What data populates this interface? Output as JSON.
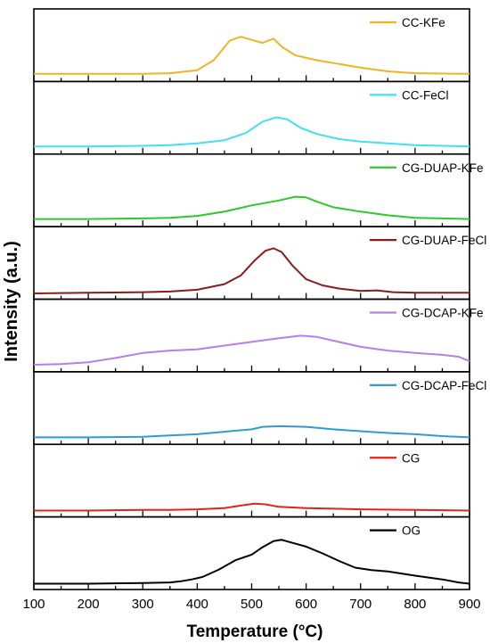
{
  "chart_data": {
    "type": "line",
    "layout": "stacked-offset",
    "xlabel": "Temperature (°C)",
    "ylabel": "Intensity (a.u.)",
    "xlim": [
      100,
      900
    ],
    "x_ticks": [
      100,
      200,
      300,
      400,
      500,
      600,
      700,
      800,
      900
    ],
    "y_ticks": [],
    "grid": false,
    "legend_position": "top-right of each panel",
    "series": [
      {
        "name": "CC-KFe",
        "color": "#f0b323",
        "points": [
          [
            100,
            0.08
          ],
          [
            200,
            0.08
          ],
          [
            300,
            0.08
          ],
          [
            350,
            0.09
          ],
          [
            400,
            0.14
          ],
          [
            430,
            0.3
          ],
          [
            460,
            0.62
          ],
          [
            480,
            0.68
          ],
          [
            500,
            0.63
          ],
          [
            520,
            0.58
          ],
          [
            540,
            0.65
          ],
          [
            555,
            0.52
          ],
          [
            580,
            0.38
          ],
          [
            620,
            0.3
          ],
          [
            660,
            0.24
          ],
          [
            700,
            0.18
          ],
          [
            750,
            0.12
          ],
          [
            800,
            0.09
          ],
          [
            900,
            0.08
          ]
        ]
      },
      {
        "name": "CC-FeCl",
        "color": "#40e0f0",
        "points": [
          [
            100,
            0.08
          ],
          [
            200,
            0.08
          ],
          [
            300,
            0.09
          ],
          [
            350,
            0.1
          ],
          [
            400,
            0.13
          ],
          [
            450,
            0.18
          ],
          [
            490,
            0.3
          ],
          [
            520,
            0.48
          ],
          [
            545,
            0.55
          ],
          [
            565,
            0.52
          ],
          [
            590,
            0.38
          ],
          [
            620,
            0.28
          ],
          [
            660,
            0.2
          ],
          [
            700,
            0.16
          ],
          [
            750,
            0.13
          ],
          [
            800,
            0.1
          ],
          [
            850,
            0.09
          ],
          [
            900,
            0.08
          ]
        ]
      },
      {
        "name": "CG-DUAP-KFe",
        "color": "#2dc82d",
        "points": [
          [
            100,
            0.08
          ],
          [
            200,
            0.08
          ],
          [
            300,
            0.09
          ],
          [
            350,
            0.1
          ],
          [
            400,
            0.13
          ],
          [
            450,
            0.2
          ],
          [
            500,
            0.3
          ],
          [
            550,
            0.38
          ],
          [
            580,
            0.44
          ],
          [
            600,
            0.43
          ],
          [
            620,
            0.36
          ],
          [
            650,
            0.27
          ],
          [
            700,
            0.2
          ],
          [
            750,
            0.14
          ],
          [
            800,
            0.1
          ],
          [
            850,
            0.09
          ],
          [
            900,
            0.08
          ]
        ]
      },
      {
        "name": "CG-DUAP-FeCl",
        "color": "#8b1a1a",
        "points": [
          [
            100,
            0.05
          ],
          [
            200,
            0.06
          ],
          [
            300,
            0.07
          ],
          [
            350,
            0.08
          ],
          [
            400,
            0.11
          ],
          [
            450,
            0.2
          ],
          [
            480,
            0.34
          ],
          [
            505,
            0.58
          ],
          [
            525,
            0.74
          ],
          [
            540,
            0.78
          ],
          [
            555,
            0.72
          ],
          [
            575,
            0.5
          ],
          [
            600,
            0.28
          ],
          [
            630,
            0.18
          ],
          [
            660,
            0.13
          ],
          [
            700,
            0.09
          ],
          [
            730,
            0.1
          ],
          [
            760,
            0.07
          ],
          [
            800,
            0.06
          ],
          [
            900,
            0.06
          ]
        ]
      },
      {
        "name": "CG-DCAP-KFe",
        "color": "#b57ee8",
        "points": [
          [
            100,
            0.07
          ],
          [
            150,
            0.08
          ],
          [
            200,
            0.11
          ],
          [
            250,
            0.18
          ],
          [
            300,
            0.26
          ],
          [
            350,
            0.3
          ],
          [
            400,
            0.32
          ],
          [
            450,
            0.38
          ],
          [
            500,
            0.44
          ],
          [
            550,
            0.5
          ],
          [
            590,
            0.54
          ],
          [
            620,
            0.52
          ],
          [
            660,
            0.44
          ],
          [
            700,
            0.36
          ],
          [
            750,
            0.3
          ],
          [
            800,
            0.26
          ],
          [
            850,
            0.23
          ],
          [
            880,
            0.2
          ],
          [
            900,
            0.13
          ]
        ]
      },
      {
        "name": "CG-DCAP-FeCl",
        "color": "#2f9bd6",
        "points": [
          [
            100,
            0.07
          ],
          [
            200,
            0.07
          ],
          [
            300,
            0.08
          ],
          [
            350,
            0.1
          ],
          [
            400,
            0.12
          ],
          [
            450,
            0.16
          ],
          [
            500,
            0.2
          ],
          [
            520,
            0.24
          ],
          [
            550,
            0.25
          ],
          [
            600,
            0.24
          ],
          [
            650,
            0.2
          ],
          [
            700,
            0.17
          ],
          [
            750,
            0.14
          ],
          [
            800,
            0.12
          ],
          [
            850,
            0.09
          ],
          [
            900,
            0.07
          ]
        ]
      },
      {
        "name": "CG",
        "color": "#e2231a",
        "points": [
          [
            100,
            0.06
          ],
          [
            200,
            0.06
          ],
          [
            300,
            0.07
          ],
          [
            350,
            0.07
          ],
          [
            400,
            0.08
          ],
          [
            450,
            0.1
          ],
          [
            480,
            0.14
          ],
          [
            505,
            0.17
          ],
          [
            525,
            0.16
          ],
          [
            550,
            0.12
          ],
          [
            600,
            0.1
          ],
          [
            650,
            0.09
          ],
          [
            700,
            0.08
          ],
          [
            800,
            0.07
          ],
          [
            900,
            0.06
          ]
        ]
      },
      {
        "name": "OG",
        "color": "#000000",
        "points": [
          [
            100,
            0.05
          ],
          [
            200,
            0.05
          ],
          [
            300,
            0.06
          ],
          [
            350,
            0.07
          ],
          [
            370,
            0.09
          ],
          [
            390,
            0.12
          ],
          [
            410,
            0.16
          ],
          [
            440,
            0.28
          ],
          [
            470,
            0.43
          ],
          [
            500,
            0.52
          ],
          [
            520,
            0.64
          ],
          [
            540,
            0.74
          ],
          [
            555,
            0.76
          ],
          [
            575,
            0.71
          ],
          [
            600,
            0.65
          ],
          [
            630,
            0.54
          ],
          [
            660,
            0.42
          ],
          [
            690,
            0.31
          ],
          [
            720,
            0.27
          ],
          [
            750,
            0.25
          ],
          [
            800,
            0.18
          ],
          [
            850,
            0.12
          ],
          [
            880,
            0.07
          ],
          [
            900,
            0.05
          ]
        ]
      }
    ]
  }
}
